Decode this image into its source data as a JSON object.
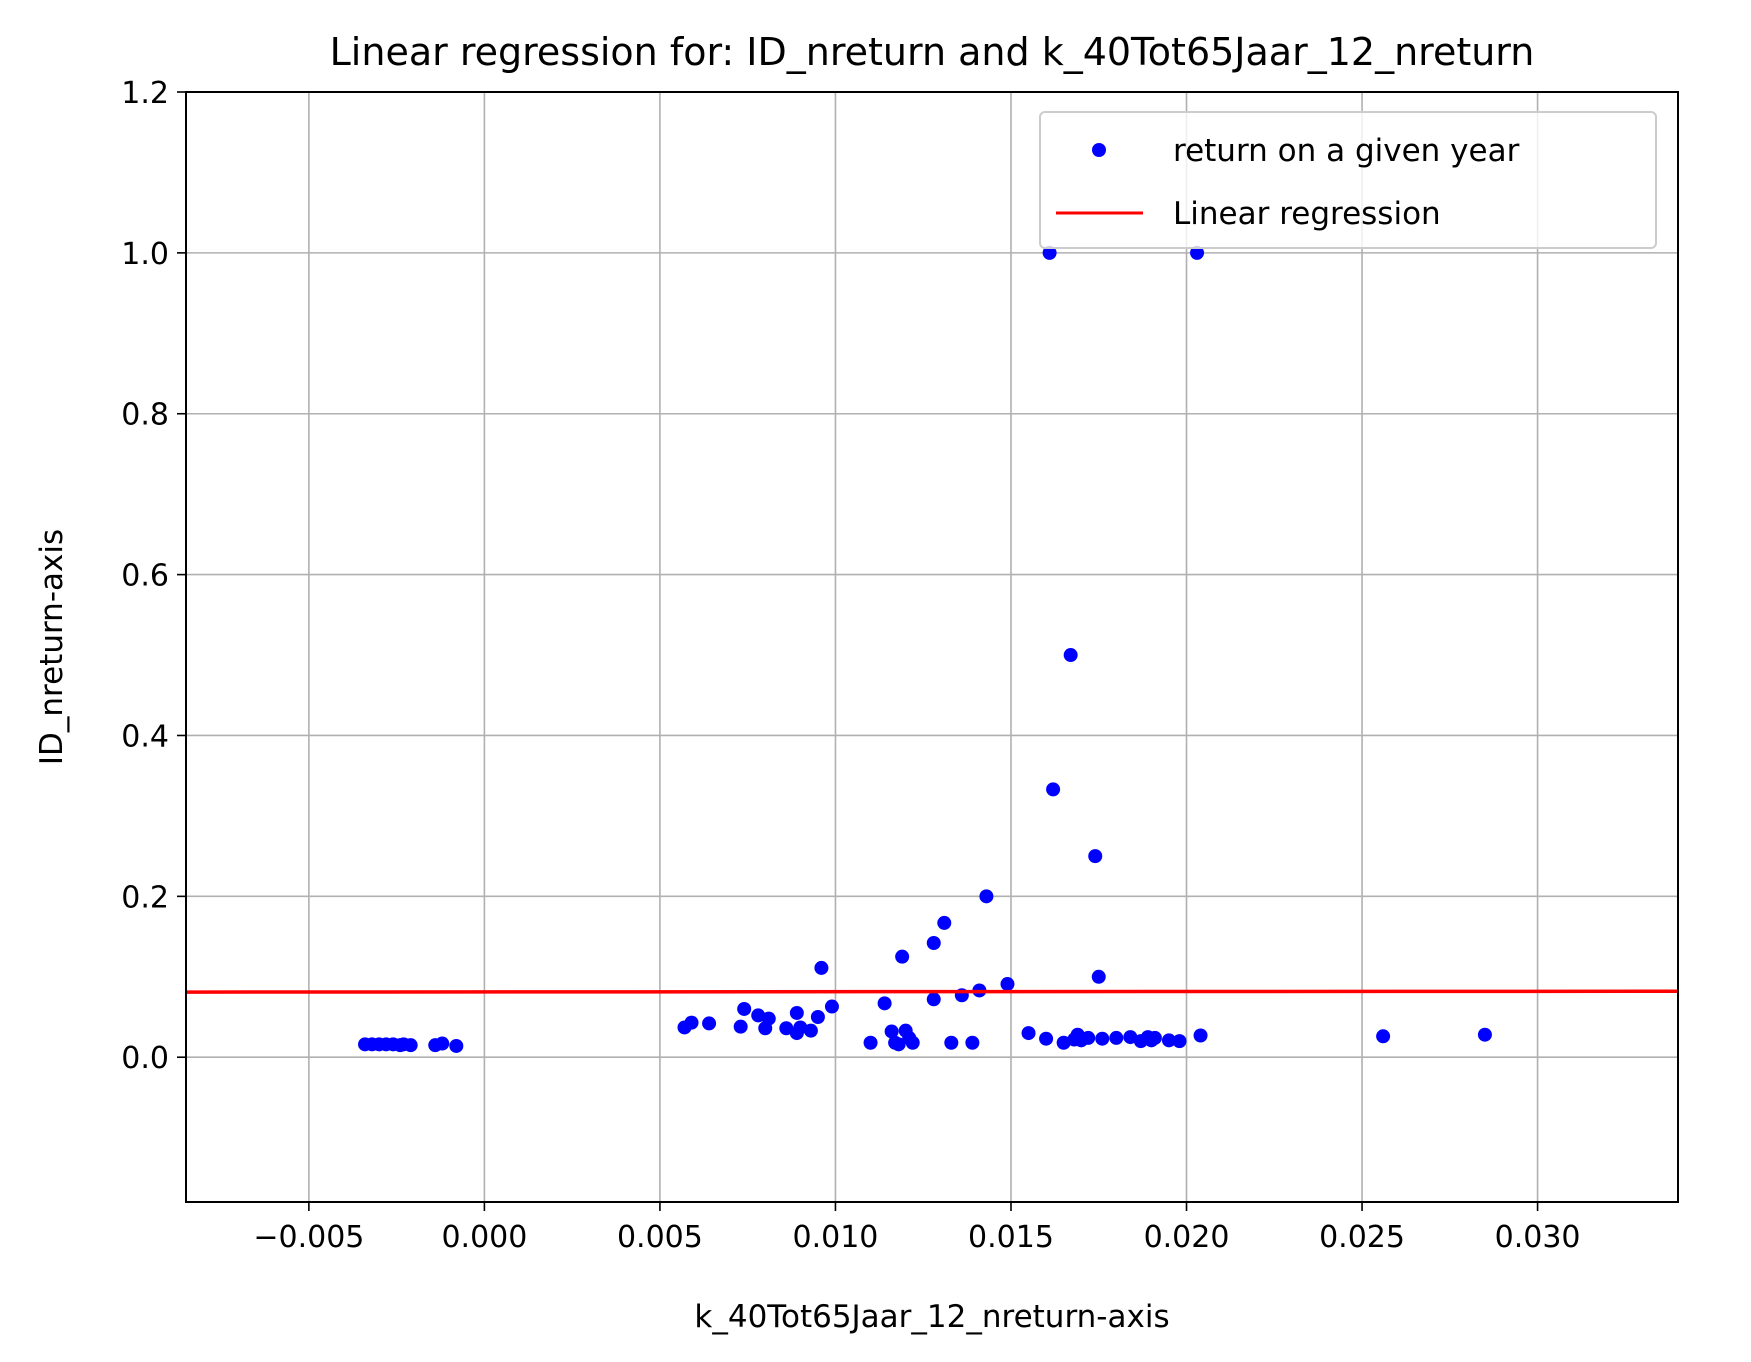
{
  "chart_data": {
    "type": "scatter",
    "title": "Linear regression for: ID_nreturn and k_40Tot65Jaar_12_nreturn",
    "xlabel": "k_40Tot65Jaar_12_nreturn-axis",
    "ylabel": "ID_nreturn-axis",
    "xlim": [
      -0.0085,
      0.034
    ],
    "ylim": [
      -0.18,
      1.2
    ],
    "xticks": [
      -0.005,
      0.0,
      0.005,
      0.01,
      0.015,
      0.02,
      0.025,
      0.03
    ],
    "xtick_labels": [
      "−0.005",
      "0.000",
      "0.005",
      "0.010",
      "0.015",
      "0.020",
      "0.025",
      "0.030"
    ],
    "yticks": [
      0.0,
      0.2,
      0.4,
      0.6,
      0.8,
      1.0,
      1.2
    ],
    "ytick_labels": [
      "0.0",
      "0.2",
      "0.4",
      "0.6",
      "0.8",
      "1.0",
      "1.2"
    ],
    "grid": true,
    "legend_position": "top-right",
    "series": [
      {
        "name": "return on a given year",
        "kind": "scatter",
        "color": "#0000ff",
        "points": [
          [
            -0.0034,
            0.016
          ],
          [
            -0.0032,
            0.016
          ],
          [
            -0.003,
            0.016
          ],
          [
            -0.0028,
            0.016
          ],
          [
            -0.0026,
            0.016
          ],
          [
            -0.0024,
            0.015
          ],
          [
            -0.0023,
            0.016
          ],
          [
            -0.0021,
            0.015
          ],
          [
            -0.0014,
            0.015
          ],
          [
            -0.0012,
            0.017
          ],
          [
            -0.0008,
            0.014
          ],
          [
            0.0057,
            0.037
          ],
          [
            0.0059,
            0.043
          ],
          [
            0.0064,
            0.042
          ],
          [
            0.0073,
            0.038
          ],
          [
            0.0074,
            0.06
          ],
          [
            0.0078,
            0.052
          ],
          [
            0.008,
            0.036
          ],
          [
            0.0081,
            0.048
          ],
          [
            0.0086,
            0.036
          ],
          [
            0.0089,
            0.055
          ],
          [
            0.0089,
            0.03
          ],
          [
            0.009,
            0.037
          ],
          [
            0.0093,
            0.033
          ],
          [
            0.0095,
            0.05
          ],
          [
            0.0096,
            0.111
          ],
          [
            0.0099,
            0.063
          ],
          [
            0.011,
            0.018
          ],
          [
            0.0114,
            0.067
          ],
          [
            0.0116,
            0.032
          ],
          [
            0.0117,
            0.018
          ],
          [
            0.0118,
            0.016
          ],
          [
            0.0119,
            0.125
          ],
          [
            0.012,
            0.033
          ],
          [
            0.0121,
            0.024
          ],
          [
            0.0122,
            0.018
          ],
          [
            0.0128,
            0.142
          ],
          [
            0.0128,
            0.072
          ],
          [
            0.0131,
            0.167
          ],
          [
            0.0133,
            0.018
          ],
          [
            0.0136,
            0.077
          ],
          [
            0.0139,
            0.018
          ],
          [
            0.0141,
            0.083
          ],
          [
            0.0143,
            0.2
          ],
          [
            0.0149,
            0.091
          ],
          [
            0.0155,
            0.03
          ],
          [
            0.016,
            0.023
          ],
          [
            0.0161,
            1.0
          ],
          [
            0.0162,
            0.333
          ],
          [
            0.0165,
            0.018
          ],
          [
            0.0167,
            0.5
          ],
          [
            0.0168,
            0.022
          ],
          [
            0.0169,
            0.028
          ],
          [
            0.017,
            0.021
          ],
          [
            0.0172,
            0.024
          ],
          [
            0.0174,
            0.25
          ],
          [
            0.0175,
            0.1
          ],
          [
            0.0176,
            0.023
          ],
          [
            0.018,
            0.024
          ],
          [
            0.0184,
            0.025
          ],
          [
            0.0187,
            0.02
          ],
          [
            0.0189,
            0.025
          ],
          [
            0.019,
            0.021
          ],
          [
            0.0191,
            0.024
          ],
          [
            0.0195,
            0.021
          ],
          [
            0.0198,
            0.02
          ],
          [
            0.0203,
            1.0
          ],
          [
            0.0204,
            0.027
          ],
          [
            0.0256,
            0.026
          ],
          [
            0.0285,
            0.028
          ]
        ]
      },
      {
        "name": "Linear regression",
        "kind": "line",
        "color": "#ff0000",
        "x": [
          -0.0085,
          0.034
        ],
        "y": [
          0.081,
          0.082
        ]
      }
    ]
  }
}
